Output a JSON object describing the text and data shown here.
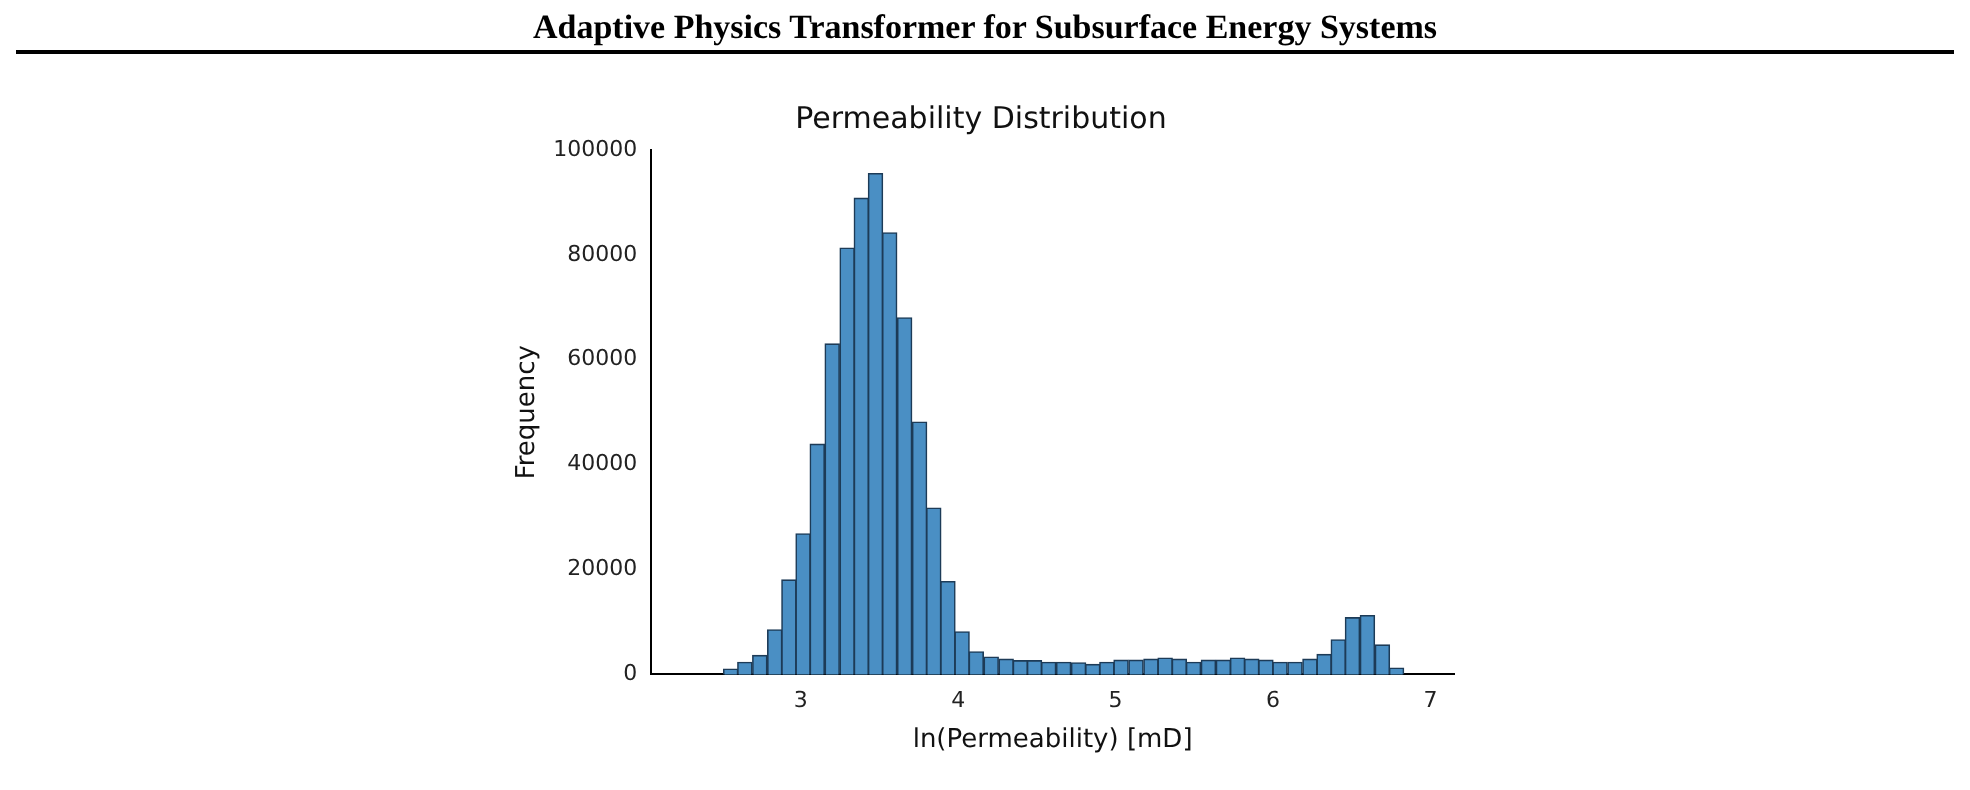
{
  "chart_data": {
    "type": "histogram",
    "title": "Adaptive Physics Transformer for Subsurface Energy Systems",
    "subtitle": "Permeability Distribution",
    "xlabel": "ln(Permeability) [mD]",
    "ylabel": "Frequency",
    "bins": [
      2.51,
      2.6,
      2.69,
      2.79,
      2.88,
      2.97,
      3.06,
      3.15,
      3.25,
      3.34,
      3.43,
      3.52,
      3.61,
      3.71,
      3.8,
      3.89,
      3.98,
      4.07,
      4.16,
      4.26,
      4.35,
      4.44,
      4.53,
      4.62,
      4.72,
      4.81,
      4.9,
      4.99,
      5.08,
      5.18,
      5.27,
      5.36,
      5.45,
      5.54,
      5.64,
      5.73,
      5.82,
      5.91,
      6.0,
      6.09,
      6.19,
      6.28,
      6.37,
      6.46,
      6.55,
      6.65,
      6.74,
      6.83
    ],
    "values": [
      1000,
      2300,
      3600,
      8500,
      18000,
      26800,
      43900,
      63000,
      81300,
      90800,
      95500,
      84200,
      68000,
      48100,
      31700,
      17700,
      8100,
      4300,
      3300,
      2900,
      2600,
      2600,
      2300,
      2300,
      2200,
      1900,
      2300,
      2700,
      2700,
      2900,
      3100,
      2900,
      2300,
      2700,
      2700,
      3100,
      2900,
      2700,
      2300,
      2300,
      2900,
      3800,
      6600,
      10800,
      11200,
      5600,
      1200
    ],
    "color": "#4a8fc4",
    "xlim": [
      2.05,
      7.15
    ],
    "ylim": [
      0,
      100000
    ],
    "xticks": [
      3,
      4,
      5,
      6,
      7
    ],
    "yticks": [
      0,
      20000,
      40000,
      60000,
      80000,
      100000
    ],
    "grid": false,
    "legend": false
  }
}
